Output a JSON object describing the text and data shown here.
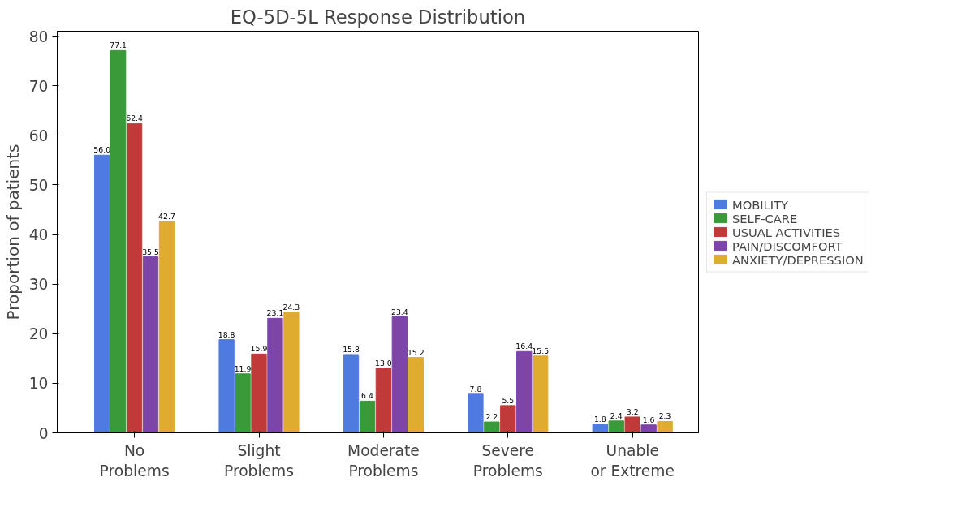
{
  "chart_data": {
    "type": "bar",
    "title": "EQ-5D-5L Response Distribution",
    "ylabel": "Proportion of patients",
    "categories": [
      "No Problems",
      "Slight Problems",
      "Moderate Problems",
      "Severe Problems",
      "Unable or Extreme"
    ],
    "series": [
      {
        "name": "MOBILITY",
        "color": "#4f7ae0",
        "values": [
          56.0,
          18.8,
          15.8,
          7.8,
          1.8
        ],
        "value_labels": [
          "56.0",
          "18.8",
          "15.8",
          "7.8",
          "1.8"
        ]
      },
      {
        "name": "SELF-CARE",
        "color": "#3a9a3a",
        "values": [
          77.1,
          11.9,
          6.4,
          2.2,
          2.4
        ],
        "value_labels": [
          "77.1",
          "11.9",
          "6.4",
          "2.2",
          "2.4"
        ]
      },
      {
        "name": "USUAL ACTIVITIES",
        "color": "#c03a3a",
        "values": [
          62.4,
          15.9,
          13.0,
          5.5,
          3.2
        ],
        "value_labels": [
          "62.4",
          "15.9",
          "13.0",
          "5.5",
          "3.2"
        ]
      },
      {
        "name": "PAIN/DISCOMFORT",
        "color": "#7d45a8",
        "values": [
          35.5,
          23.1,
          23.4,
          16.4,
          1.6
        ],
        "value_labels": [
          "35.5",
          "23.1",
          "23.4",
          "16.4",
          "1.6"
        ]
      },
      {
        "name": "ANXIETY/DEPRESSION",
        "color": "#e0ac2f",
        "values": [
          42.7,
          24.3,
          15.2,
          15.5,
          2.3
        ],
        "value_labels": [
          "42.7",
          "24.3",
          "15.2",
          "15.5",
          "2.3"
        ]
      }
    ],
    "ylim": [
      0,
      81
    ],
    "yticks": [
      0,
      10,
      20,
      30,
      40,
      50,
      60,
      70,
      80
    ],
    "grid": false,
    "legend": "right"
  }
}
